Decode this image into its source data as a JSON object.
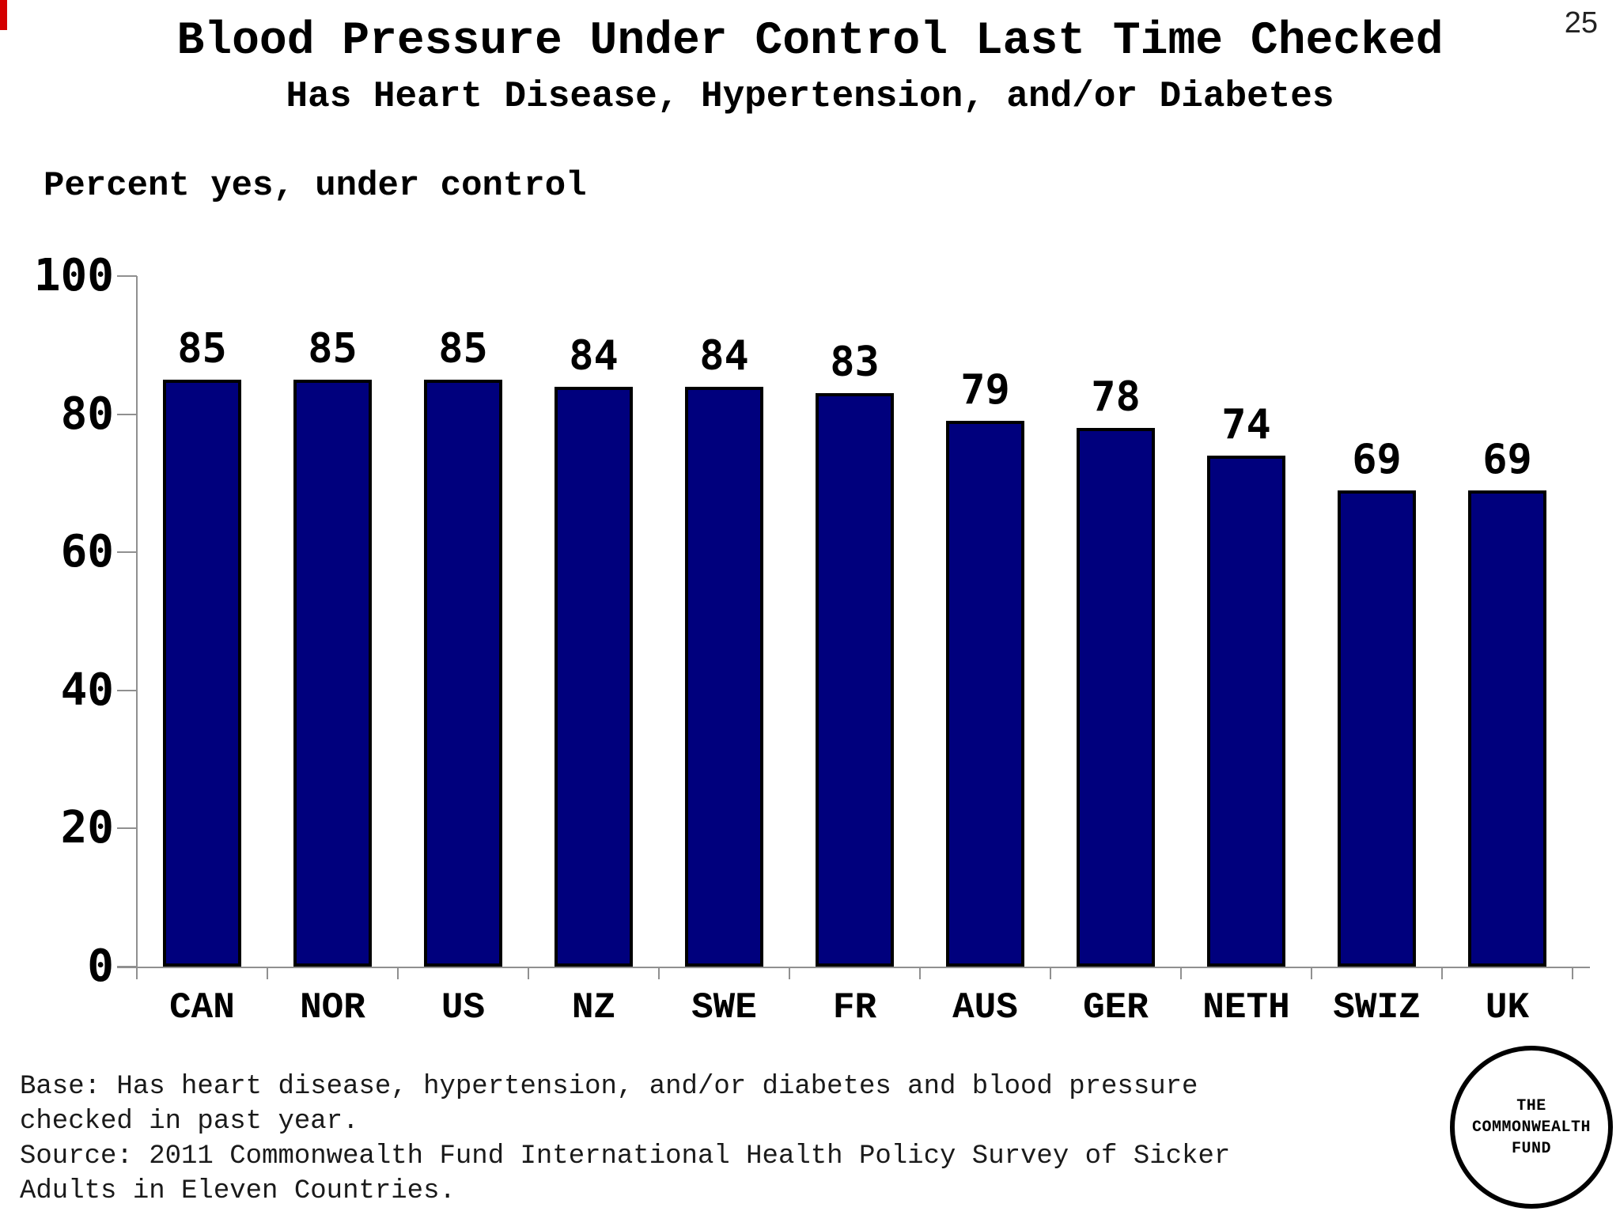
{
  "page_number": "25",
  "header": {
    "title": "Blood Pressure Under Control Last Time Checked",
    "subtitle": "Has Heart Disease, Hypertension, and/or Diabetes"
  },
  "chart_data": {
    "type": "bar",
    "title": "Blood Pressure Under Control Last Time Checked",
    "subtitle": "Has Heart Disease, Hypertension, and/or Diabetes",
    "ylabel": "Percent yes, under control",
    "categories": [
      "CAN",
      "NOR",
      "US",
      "NZ",
      "SWE",
      "FR",
      "AUS",
      "GER",
      "NETH",
      "SWIZ",
      "UK"
    ],
    "values": [
      85,
      85,
      85,
      84,
      84,
      83,
      79,
      78,
      74,
      69,
      69
    ],
    "ylim": [
      0,
      100
    ],
    "yticks": [
      0,
      20,
      40,
      60,
      80,
      100
    ],
    "grid": false,
    "legend": "none",
    "bar_color": "#00007D",
    "bar_border_color": "#000000",
    "axis_color": "#909090"
  },
  "footer": {
    "lines": [
      "Base: Has heart disease, hypertension, and/or diabetes and blood pressure",
      "checked in past year.",
      "Source: 2011 Commonwealth Fund International Health Policy Survey of Sicker",
      "Adults in Eleven Countries."
    ]
  },
  "logo": {
    "lines": [
      "THE",
      "COMMONWEALTH",
      "FUND"
    ]
  }
}
